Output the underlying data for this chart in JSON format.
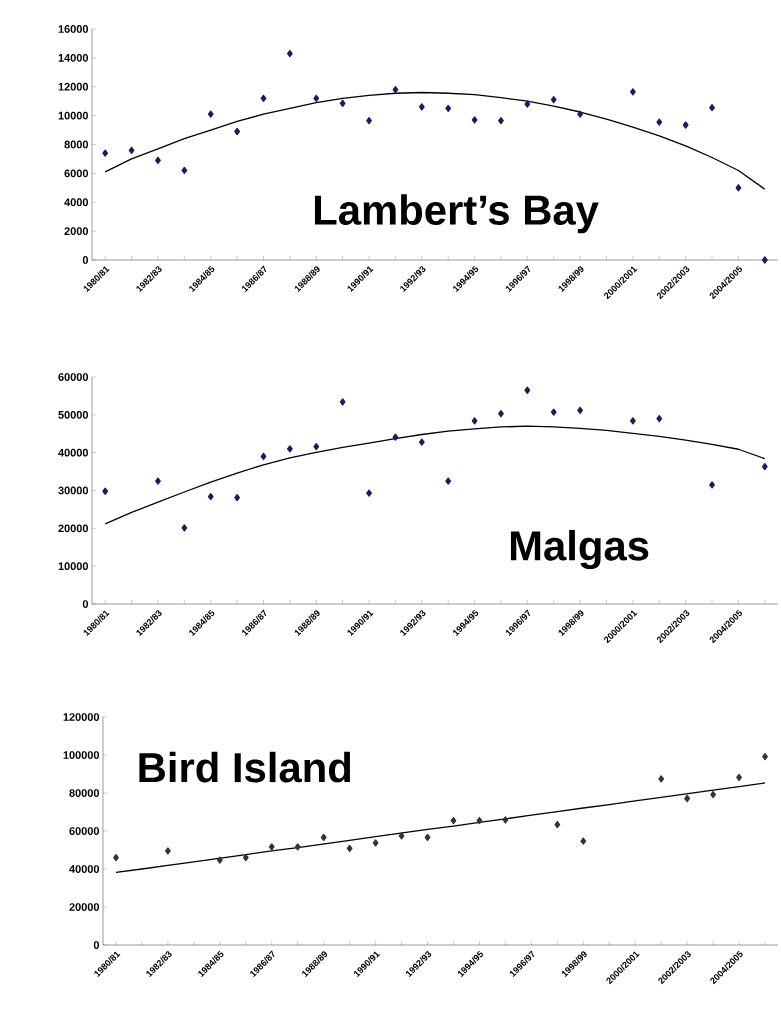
{
  "chart_data": [
    {
      "type": "scatter",
      "title": "Lambert’s Bay",
      "categories": [
        "1980/81",
        null,
        "1982/83",
        null,
        "1984/85",
        null,
        "1986/87",
        null,
        "1988/89",
        null,
        "1990/91",
        null,
        "1992/93",
        null,
        "1994/95",
        null,
        "1996/97",
        null,
        "1998/99",
        null,
        "2000/2001",
        null,
        "2002/2003",
        null,
        "2004/2005",
        null
      ],
      "ylim": [
        0,
        16000
      ],
      "yticks": [
        0,
        2000,
        4000,
        6000,
        8000,
        10000,
        12000,
        14000,
        16000
      ],
      "series": [
        {
          "type": "scatter",
          "marker": "diamond",
          "color": "#1c1c5c",
          "values": [
            7400,
            7600,
            6900,
            6200,
            10100,
            8900,
            11200,
            14300,
            11200,
            10850,
            9650,
            11800,
            10600,
            10500,
            9700,
            9650,
            10800,
            11100,
            10100,
            null,
            11650,
            9550,
            9350,
            10550,
            5000,
            0
          ]
        },
        {
          "type": "line",
          "marker": "none",
          "color": "#000000",
          "values": [
            6100,
            7000,
            7700,
            8400,
            9000,
            9600,
            10100,
            10500,
            10900,
            11200,
            11400,
            11550,
            11600,
            11550,
            11450,
            11250,
            11000,
            10650,
            10250,
            9750,
            9200,
            8600,
            7900,
            7100,
            6200,
            4900
          ]
        }
      ]
    },
    {
      "type": "scatter",
      "title": "Malgas",
      "categories": [
        "1980/81",
        null,
        "1982/83",
        null,
        "1984/85",
        null,
        "1986/87",
        null,
        "1988/89",
        null,
        "1990/91",
        null,
        "1992/93",
        null,
        "1994/95",
        null,
        "1996/97",
        null,
        "1998/99",
        null,
        "2000/2001",
        null,
        "2002/2003",
        null,
        "2004/2005",
        null
      ],
      "ylim": [
        0,
        60000
      ],
      "yticks": [
        0,
        10000,
        20000,
        30000,
        40000,
        50000,
        60000
      ],
      "series": [
        {
          "type": "scatter",
          "marker": "diamond",
          "color": "#1c1c5c",
          "values": [
            29800,
            null,
            32500,
            20100,
            28400,
            28100,
            39000,
            41000,
            41600,
            53400,
            29300,
            44100,
            42800,
            32500,
            48400,
            50300,
            56500,
            50700,
            51200,
            null,
            48400,
            49000,
            null,
            31500,
            null,
            36300
          ]
        },
        {
          "type": "line",
          "marker": "none",
          "color": "#000000",
          "values": [
            21200,
            24200,
            26900,
            29600,
            32200,
            34600,
            36800,
            38600,
            40100,
            41400,
            42500,
            43700,
            44800,
            45700,
            46300,
            46800,
            47000,
            46800,
            46400,
            45900,
            45100,
            44300,
            43300,
            42200,
            40900,
            38400
          ]
        }
      ]
    },
    {
      "type": "scatter",
      "title": "Bird Island",
      "categories": [
        "1980/81",
        null,
        "1982/83",
        null,
        "1984/85",
        null,
        "1986/87",
        null,
        "1988/89",
        null,
        "1990/91",
        null,
        "1992/93",
        null,
        "1994/95",
        null,
        "1996/97",
        null,
        "1998/99",
        null,
        "2000/2001",
        null,
        "2002/2003",
        null,
        "2004/2005",
        null
      ],
      "ylim": [
        0,
        120000
      ],
      "yticks": [
        0,
        20000,
        40000,
        60000,
        80000,
        100000,
        120000
      ],
      "series": [
        {
          "type": "scatter",
          "marker": "diamond",
          "color": "#333333",
          "values": [
            46000,
            null,
            49500,
            null,
            44700,
            46000,
            51600,
            51600,
            56600,
            50800,
            53700,
            57400,
            56600,
            65500,
            65500,
            65800,
            null,
            63400,
            54700,
            null,
            null,
            87400,
            77100,
            79200,
            88200,
            99200
          ]
        },
        {
          "type": "line",
          "marker": "none",
          "color": "#000000",
          "values": [
            38200,
            40000,
            41900,
            43800,
            45700,
            47600,
            49500,
            51300,
            53200,
            55100,
            57000,
            58900,
            60800,
            62600,
            64500,
            66400,
            68300,
            70200,
            72100,
            73900,
            75800,
            77700,
            79600,
            81500,
            83400,
            85300
          ]
        }
      ]
    }
  ]
}
